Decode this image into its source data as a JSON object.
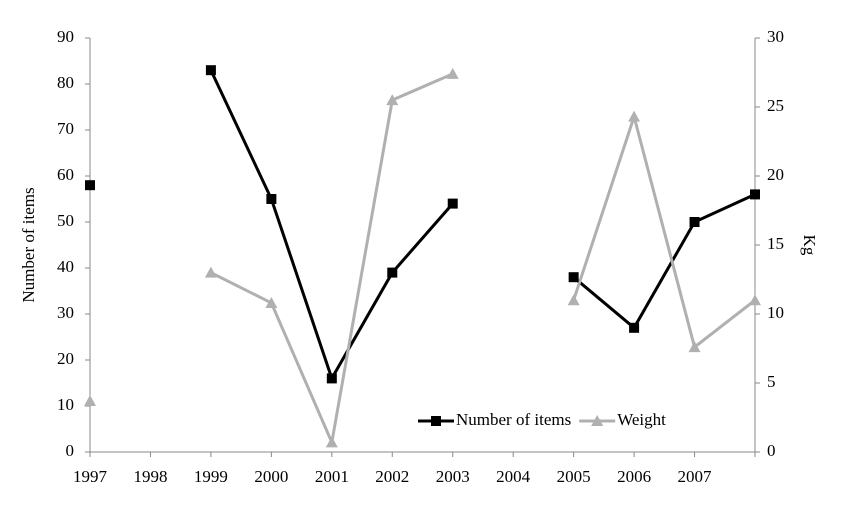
{
  "chart_data": {
    "type": "line",
    "categories": [
      "1997",
      "1998",
      "1999",
      "2000",
      "2001",
      "2002",
      "2003",
      "2004",
      "2005",
      "2006",
      "2007",
      null
    ],
    "series": [
      {
        "name": "Number of items",
        "color": "#000000",
        "marker": "square",
        "values": [
          58,
          null,
          83,
          55,
          16,
          39,
          54,
          null,
          38,
          27,
          50,
          56
        ]
      },
      {
        "name": "Weight",
        "color": "#b0b0b0",
        "marker": "triangle",
        "axis": "y2",
        "values": [
          3.7,
          null,
          13,
          10.8,
          0.7,
          25.5,
          27.4,
          null,
          11,
          24.3,
          7.6,
          11
        ]
      }
    ],
    "y_label": "Number of items",
    "y2_label": "Kg",
    "ylim": [
      0,
      90
    ],
    "yticks": [
      0,
      10,
      20,
      30,
      40,
      50,
      60,
      70,
      80,
      90
    ],
    "y2lim": [
      0,
      30
    ],
    "y2ticks": [
      0,
      5,
      10,
      15,
      20,
      25,
      30
    ],
    "legend": "lower right"
  }
}
